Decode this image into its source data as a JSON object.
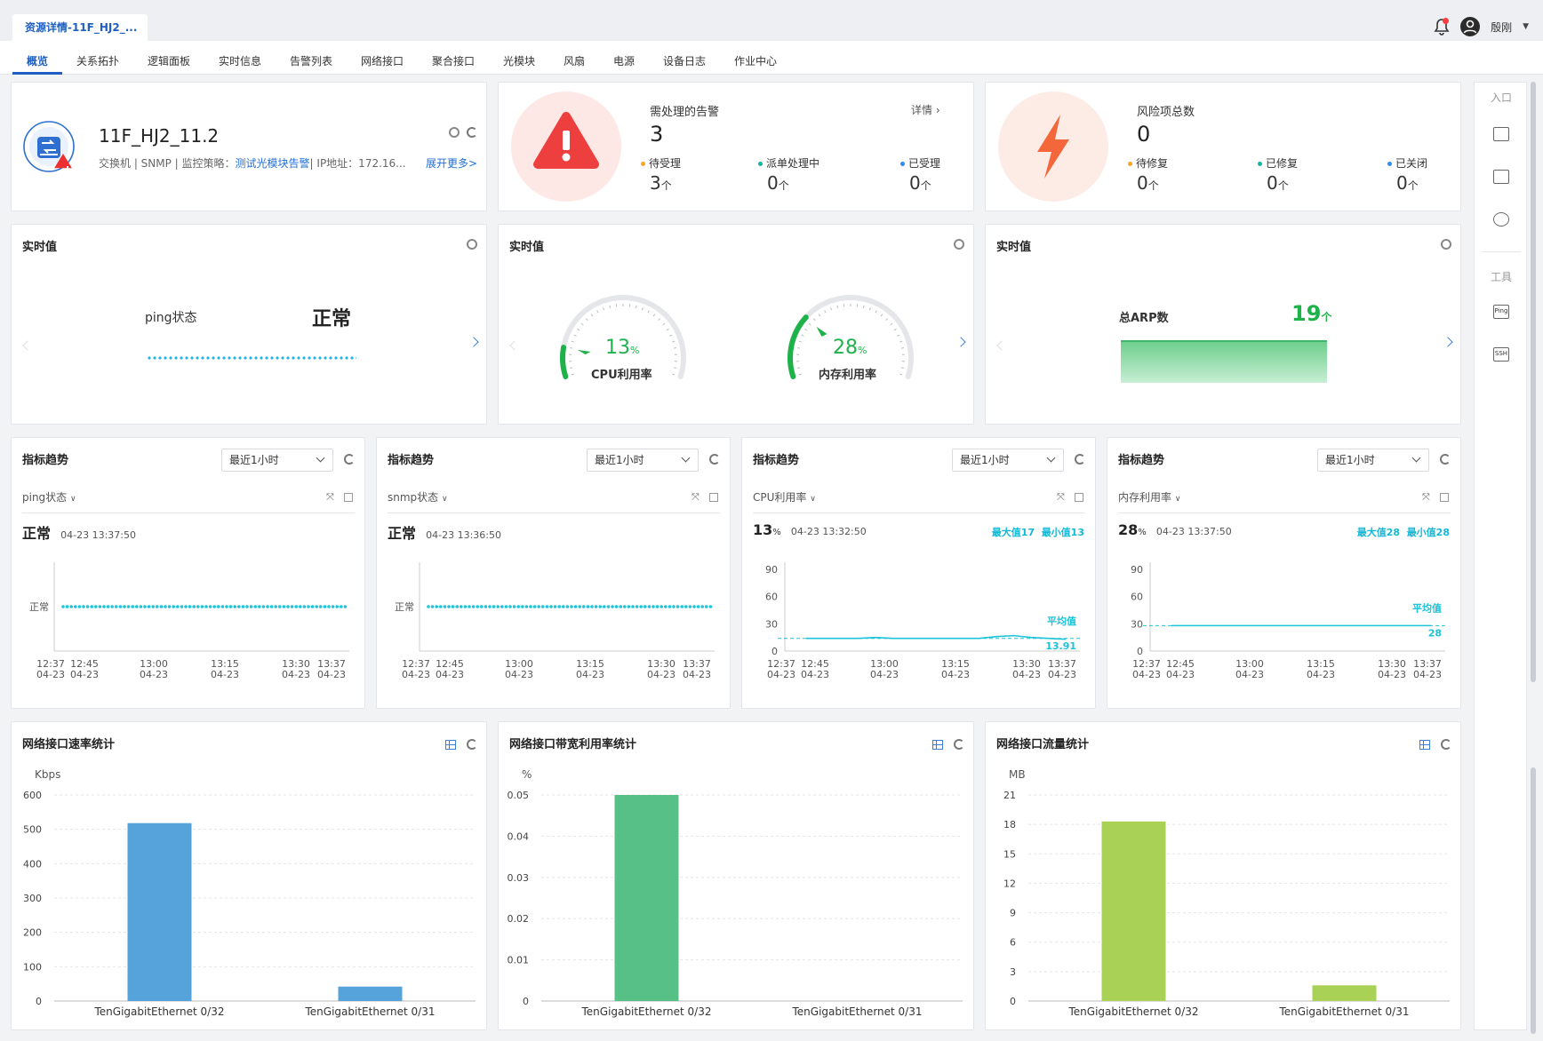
{
  "doc_tab": {
    "title": "资源详情-11F_HJ2_..."
  },
  "user": {
    "name": "殷刚"
  },
  "nav": {
    "tabs": [
      "概览",
      "关系拓扑",
      "逻辑面板",
      "实时信息",
      "告警列表",
      "网络接口",
      "聚合接口",
      "光模块",
      "风扇",
      "电源",
      "设备日志",
      "作业中心"
    ]
  },
  "device": {
    "name": "11F_HJ2_11.2",
    "meta_prefix": "交换机 | SNMP | 监控策略：",
    "policy": "测试光模块告警",
    "meta_suffix": "| IP地址：172.16...",
    "more": "展开更多>"
  },
  "alarms": {
    "title": "需处理的告警",
    "count": "3",
    "detail": "详情",
    "stats": [
      {
        "label": "待受理",
        "value": "3",
        "unit": "个",
        "color": "#f5a623"
      },
      {
        "label": "派单处理中",
        "value": "0",
        "unit": "个",
        "color": "#13b5a6"
      },
      {
        "label": "已受理",
        "value": "0",
        "unit": "个",
        "color": "#2f8cf0"
      }
    ]
  },
  "risks": {
    "title": "风险项总数",
    "count": "0",
    "stats": [
      {
        "label": "待修复",
        "value": "0",
        "unit": "个",
        "color": "#f5a623"
      },
      {
        "label": "已修复",
        "value": "0",
        "unit": "个",
        "color": "#13b5a6"
      },
      {
        "label": "已关闭",
        "value": "0",
        "unit": "个",
        "color": "#2f8cf0"
      }
    ]
  },
  "realtime": [
    {
      "title": "实时值",
      "ping_label": "ping状态",
      "ping_value": "正常"
    },
    {
      "title": "实时值",
      "cpu_value": "13",
      "cpu_unit": "%",
      "cpu_label": "CPU利用率",
      "cpu_pct": 13,
      "mem_value": "28",
      "mem_unit": "%",
      "mem_label": "内存利用率",
      "mem_pct": 28
    },
    {
      "title": "实时值",
      "arp_label": "总ARP数",
      "arp_value": "19",
      "arp_unit": "个"
    }
  ],
  "trends": [
    {
      "title": "指标趋势",
      "range": "最近1小时",
      "metric": "ping状态",
      "value": "正常",
      "unit": "",
      "time": "04-23 13:37:50",
      "max": "",
      "min": "",
      "ylabel": "正常",
      "avg_label": "",
      "avg_value": ""
    },
    {
      "title": "指标趋势",
      "range": "最近1小时",
      "metric": "snmp状态",
      "value": "正常",
      "unit": "",
      "time": "04-23 13:36:50",
      "max": "",
      "min": "",
      "ylabel": "正常",
      "avg_label": "",
      "avg_value": ""
    },
    {
      "title": "指标趋势",
      "range": "最近1小时",
      "metric": "CPU利用率",
      "value": "13",
      "unit": "%",
      "time": "04-23 13:32:50",
      "max": "最大值17",
      "min": "最小值13",
      "avg_label": "平均值",
      "avg_value": "13.91",
      "yticks": [
        "90",
        "60",
        "30",
        "0"
      ],
      "series": [
        14,
        14,
        14,
        14,
        15,
        14,
        14,
        14,
        14,
        14,
        14,
        16,
        17,
        15,
        14,
        13
      ]
    },
    {
      "title": "指标趋势",
      "range": "最近1小时",
      "metric": "内存利用率",
      "value": "28",
      "unit": "%",
      "time": "04-23 13:37:50",
      "max": "最大值28",
      "min": "最小值28",
      "avg_label": "平均值",
      "avg_value": "28",
      "yticks": [
        "90",
        "60",
        "30",
        "0"
      ],
      "series": [
        28,
        28,
        28,
        28,
        28,
        28,
        28,
        28,
        28,
        28,
        28,
        28,
        28,
        28,
        28,
        28
      ]
    }
  ],
  "trend_xticks": [
    {
      "t": "12:37",
      "d": "04-23"
    },
    {
      "t": "12:45",
      "d": "04-23"
    },
    {
      "t": "13:00",
      "d": "04-23"
    },
    {
      "t": "13:15",
      "d": "04-23"
    },
    {
      "t": "13:30",
      "d": "04-23"
    },
    {
      "t": "13:37",
      "d": "04-23"
    }
  ],
  "charts": {
    "chart_data": [
      {
        "type": "bar",
        "title": "网络接口速率统计",
        "ylabel": "Kbps",
        "categories": [
          "TenGigabitEthernet 0/32",
          "TenGigabitEthernet 0/31"
        ],
        "values": [
          518,
          42
        ],
        "ylim": [
          0,
          600
        ],
        "yticks": [
          "600",
          "500",
          "400",
          "300",
          "200",
          "100",
          "0"
        ],
        "color": "#56a3dc"
      },
      {
        "type": "bar",
        "title": "网络接口带宽利用率统计",
        "ylabel": "%",
        "categories": [
          "TenGigabitEthernet 0/32",
          "TenGigabitEthernet 0/31"
        ],
        "values": [
          0.05,
          0
        ],
        "ylim": [
          0,
          0.05
        ],
        "yticks": [
          "0.05",
          "0.04",
          "0.03",
          "0.02",
          "0.01",
          "0"
        ],
        "color": "#56c087"
      },
      {
        "type": "bar",
        "title": "网络接口流量统计",
        "ylabel": "MB",
        "categories": [
          "TenGigabitEthernet 0/32",
          "TenGigabitEthernet 0/31"
        ],
        "values": [
          18.3,
          1.6
        ],
        "ylim": [
          0,
          21
        ],
        "yticks": [
          "21",
          "18",
          "15",
          "12",
          "9",
          "6",
          "3",
          "0"
        ],
        "color": "#a9d156"
      }
    ]
  },
  "sidebar": {
    "entry": "入口",
    "tools": "工具",
    "ping": "Ping",
    "ssh": "SSH"
  }
}
